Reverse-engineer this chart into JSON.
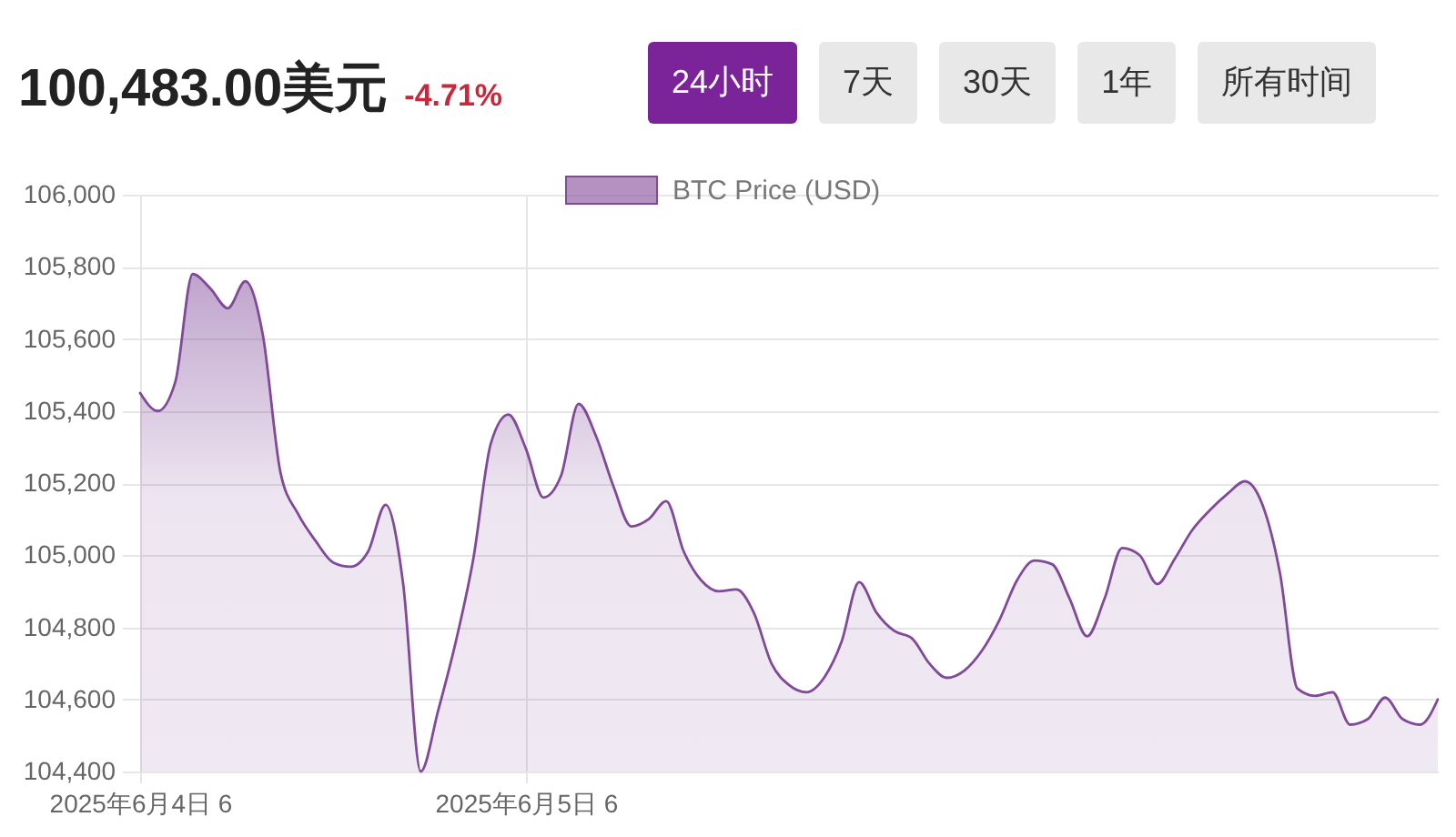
{
  "chart_data": {
    "type": "area",
    "title": "100,483.00美元",
    "subtitle": "-4.71%",
    "annotations": [
      "24小时",
      "7天",
      "30天",
      "1年",
      "所有时间"
    ],
    "categories": [
      "2025年6月4日 6",
      null,
      null,
      null,
      null,
      null,
      null,
      null,
      null,
      null,
      null,
      null,
      null,
      null,
      null,
      null,
      null,
      null,
      null,
      null,
      null,
      null,
      "2025年6月5日 6",
      null,
      null,
      null,
      null,
      null,
      null,
      null,
      null,
      null,
      null,
      null,
      null,
      null,
      null,
      null,
      null,
      null,
      null,
      null,
      null,
      null,
      null,
      null,
      null,
      null,
      null,
      null,
      null,
      null,
      null,
      null,
      null,
      null,
      null,
      null,
      null,
      null,
      null,
      null,
      null,
      null,
      null,
      null,
      null,
      null,
      null,
      null,
      null,
      null,
      null,
      null,
      null
    ],
    "series": [
      {
        "name": "BTC Price (USD)",
        "color": "#804a99",
        "values": [
          105450,
          105400,
          105480,
          105780,
          105740,
          105685,
          105760,
          105610,
          105230,
          105115,
          105040,
          104980,
          104968,
          105010,
          105140,
          104920,
          104400,
          104570,
          104760,
          104990,
          105310,
          105390,
          105295,
          105160,
          105220,
          105420,
          105330,
          105190,
          105080,
          105100,
          105150,
          105010,
          104930,
          104900,
          104905,
          104840,
          104700,
          104640,
          104620,
          104660,
          104760,
          104925,
          104840,
          104790,
          104770,
          104700,
          104660,
          104680,
          104735,
          104820,
          104930,
          104985,
          104975,
          104880,
          104775,
          104880,
          105020,
          105000,
          104920,
          104990,
          105070,
          105125,
          105170,
          105205,
          105140,
          104950,
          104630,
          104610,
          104620,
          104530,
          104545,
          104605,
          104545,
          104530,
          104600
        ]
      }
    ],
    "ylim": [
      104400,
      106000
    ],
    "yticks": [
      {
        "value": 104400,
        "label": "104,400"
      },
      {
        "value": 104600,
        "label": "104,600"
      },
      {
        "value": 104800,
        "label": "104,800"
      },
      {
        "value": 105000,
        "label": "105,000"
      },
      {
        "value": 105200,
        "label": "105,200"
      },
      {
        "value": 105400,
        "label": "105,400"
      },
      {
        "value": 105600,
        "label": "105,600"
      },
      {
        "value": 105800,
        "label": "105,800"
      },
      {
        "value": 106000,
        "label": "106,000"
      }
    ],
    "grid": true,
    "legend": "top"
  }
}
